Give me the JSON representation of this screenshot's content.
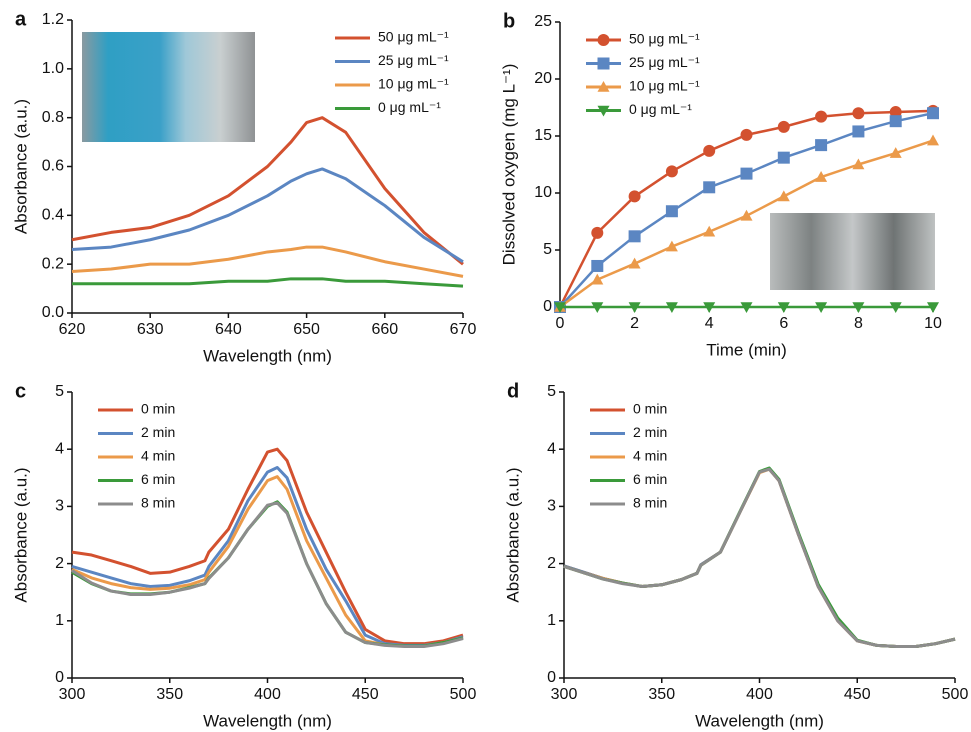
{
  "chart_data": [
    {
      "type": "line",
      "label": "a",
      "xlabel": "Wavelength (nm)",
      "ylabel": "Absorbance (a.u.)",
      "legend": "upper right",
      "x": [
        620,
        625,
        630,
        635,
        640,
        645,
        648,
        650,
        652,
        655,
        660,
        665,
        670
      ],
      "series": [
        {
          "name": "50 μg mL⁻¹",
          "color": "#d3512f",
          "values": [
            0.3,
            0.33,
            0.35,
            0.4,
            0.48,
            0.6,
            0.7,
            0.78,
            0.8,
            0.74,
            0.51,
            0.33,
            0.2
          ]
        },
        {
          "name": "25 μg mL⁻¹",
          "color": "#5b86c2",
          "values": [
            0.26,
            0.27,
            0.3,
            0.34,
            0.4,
            0.48,
            0.54,
            0.57,
            0.59,
            0.55,
            0.44,
            0.31,
            0.21
          ]
        },
        {
          "name": "10 μg mL⁻¹",
          "color": "#eb9a4a",
          "values": [
            0.17,
            0.18,
            0.2,
            0.2,
            0.22,
            0.25,
            0.26,
            0.27,
            0.27,
            0.25,
            0.21,
            0.18,
            0.15
          ]
        },
        {
          "name": "0 μg mL⁻¹",
          "color": "#3a9a3a",
          "values": [
            0.12,
            0.12,
            0.12,
            0.12,
            0.13,
            0.13,
            0.14,
            0.14,
            0.14,
            0.13,
            0.13,
            0.12,
            0.11
          ]
        }
      ],
      "xlim": [
        620,
        670
      ],
      "ylim": [
        0,
        1.2
      ],
      "xticks": [
        620,
        630,
        640,
        650,
        660,
        670
      ],
      "yticks": [
        {
          "value": 0,
          "label": "0.0"
        },
        0.2,
        0.4,
        0.6,
        0.8,
        {
          "value": 1,
          "label": "1.0"
        },
        1.2
      ]
    },
    {
      "type": "line",
      "label": "b",
      "xlabel": "Time (min)",
      "ylabel": "Dissolved oxygen (mg L⁻¹)",
      "legend": "upper left",
      "x": [
        0,
        1,
        2,
        3,
        4,
        5,
        6,
        7,
        8,
        9,
        10
      ],
      "series": [
        {
          "name": "50 μg mL⁻¹",
          "color": "#d3512f",
          "marker": "circle",
          "values": [
            0,
            6.5,
            9.7,
            11.9,
            13.7,
            15.1,
            15.8,
            16.7,
            17.0,
            17.1,
            17.2
          ]
        },
        {
          "name": "25 μg mL⁻¹",
          "color": "#5b86c2",
          "marker": "square",
          "values": [
            0,
            3.6,
            6.2,
            8.4,
            10.5,
            11.7,
            13.1,
            14.2,
            15.4,
            16.3,
            17.0
          ]
        },
        {
          "name": "10 μg mL⁻¹",
          "color": "#eb9a4a",
          "marker": "triangle-up",
          "values": [
            0,
            2.4,
            3.8,
            5.3,
            6.6,
            8.0,
            9.7,
            11.4,
            12.5,
            13.5,
            14.6
          ]
        },
        {
          "name": "0 μg mL⁻¹",
          "color": "#3a9a3a",
          "marker": "triangle-down",
          "values": [
            0,
            0,
            0,
            0,
            0,
            0,
            0,
            0,
            0,
            0,
            0
          ]
        }
      ],
      "xlim": [
        0,
        10
      ],
      "ylim": [
        0,
        25
      ],
      "xticks": [
        0,
        2,
        4,
        6,
        8,
        10
      ],
      "yticks": [
        0,
        5,
        10,
        15,
        20,
        25
      ]
    },
    {
      "type": "line",
      "label": "c",
      "xlabel": "Wavelength (nm)",
      "ylabel": "Absorbance (a.u.)",
      "legend": "upper left",
      "x": [
        300,
        310,
        320,
        330,
        340,
        350,
        360,
        368,
        370,
        380,
        390,
        400,
        405,
        410,
        420,
        430,
        440,
        450,
        460,
        470,
        480,
        490,
        500
      ],
      "series": [
        {
          "name": "0 min",
          "color": "#d3512f",
          "values": [
            2.2,
            2.15,
            2.05,
            1.95,
            1.83,
            1.85,
            1.95,
            2.05,
            2.2,
            2.6,
            3.3,
            3.95,
            4.0,
            3.8,
            2.9,
            2.2,
            1.5,
            0.85,
            0.65,
            0.6,
            0.6,
            0.65,
            0.75
          ]
        },
        {
          "name": "2 min",
          "color": "#5b86c2",
          "values": [
            1.95,
            1.85,
            1.75,
            1.65,
            1.6,
            1.62,
            1.7,
            1.8,
            1.95,
            2.4,
            3.1,
            3.6,
            3.68,
            3.5,
            2.6,
            1.9,
            1.35,
            0.75,
            0.6,
            0.57,
            0.57,
            0.62,
            0.72
          ]
        },
        {
          "name": "4 min",
          "color": "#eb9a4a",
          "values": [
            1.9,
            1.75,
            1.65,
            1.58,
            1.55,
            1.57,
            1.63,
            1.72,
            1.85,
            2.3,
            2.95,
            3.45,
            3.52,
            3.3,
            2.4,
            1.75,
            1.1,
            0.65,
            0.58,
            0.56,
            0.56,
            0.62,
            0.7
          ]
        },
        {
          "name": "6 min",
          "color": "#3a9a3a",
          "values": [
            1.85,
            1.65,
            1.52,
            1.47,
            1.47,
            1.5,
            1.58,
            1.65,
            1.75,
            2.1,
            2.6,
            3.0,
            3.08,
            2.9,
            2.0,
            1.3,
            0.8,
            0.62,
            0.58,
            0.56,
            0.56,
            0.62,
            0.7
          ]
        },
        {
          "name": "8 min",
          "color": "#8c8c8c",
          "values": [
            1.88,
            1.66,
            1.52,
            1.46,
            1.46,
            1.5,
            1.57,
            1.65,
            1.74,
            2.1,
            2.6,
            3.02,
            3.06,
            2.88,
            2.0,
            1.3,
            0.8,
            0.62,
            0.57,
            0.55,
            0.55,
            0.6,
            0.69
          ]
        }
      ],
      "xlim": [
        300,
        500
      ],
      "ylim": [
        0,
        5
      ],
      "xticks": [
        300,
        350,
        400,
        450,
        500
      ],
      "yticks": [
        0,
        1,
        2,
        3,
        4,
        5
      ]
    },
    {
      "type": "line",
      "label": "d",
      "xlabel": "Wavelength (nm)",
      "ylabel": "Absorbance (a.u.)",
      "legend": "upper left",
      "x": [
        300,
        310,
        320,
        330,
        340,
        350,
        360,
        368,
        370,
        380,
        390,
        400,
        405,
        410,
        420,
        430,
        440,
        450,
        460,
        470,
        480,
        490,
        500
      ],
      "series": [
        {
          "name": "0 min",
          "color": "#d3512f",
          "values": [
            1.96,
            1.85,
            1.74,
            1.66,
            1.6,
            1.63,
            1.72,
            1.83,
            1.98,
            2.2,
            2.9,
            3.6,
            3.66,
            3.45,
            2.5,
            1.6,
            1.0,
            0.65,
            0.57,
            0.55,
            0.55,
            0.6,
            0.68
          ]
        },
        {
          "name": "2 min",
          "color": "#5b86c2",
          "values": [
            1.96,
            1.85,
            1.74,
            1.66,
            1.6,
            1.63,
            1.72,
            1.83,
            1.98,
            2.2,
            2.9,
            3.6,
            3.66,
            3.45,
            2.5,
            1.61,
            1.01,
            0.65,
            0.57,
            0.55,
            0.55,
            0.6,
            0.68
          ]
        },
        {
          "name": "4 min",
          "color": "#eb9a4a",
          "values": [
            1.95,
            1.84,
            1.74,
            1.66,
            1.6,
            1.63,
            1.72,
            1.83,
            1.97,
            2.2,
            2.9,
            3.59,
            3.65,
            3.45,
            2.5,
            1.61,
            1.02,
            0.65,
            0.57,
            0.55,
            0.55,
            0.6,
            0.68
          ]
        },
        {
          "name": "6 min",
          "color": "#3a9a3a",
          "values": [
            1.95,
            1.84,
            1.73,
            1.66,
            1.6,
            1.63,
            1.72,
            1.83,
            1.97,
            2.2,
            2.91,
            3.61,
            3.67,
            3.47,
            2.53,
            1.64,
            1.05,
            0.66,
            0.57,
            0.55,
            0.55,
            0.6,
            0.68
          ]
        },
        {
          "name": "8 min",
          "color": "#8c8c8c",
          "values": [
            1.95,
            1.84,
            1.73,
            1.65,
            1.6,
            1.63,
            1.72,
            1.83,
            1.97,
            2.2,
            2.9,
            3.6,
            3.65,
            3.45,
            2.5,
            1.6,
            1.0,
            0.65,
            0.57,
            0.55,
            0.55,
            0.6,
            0.68
          ]
        }
      ],
      "xlim": [
        300,
        500
      ],
      "ylim": [
        0,
        5
      ],
      "xticks": [
        300,
        350,
        400,
        450,
        500
      ],
      "yticks": [
        0,
        1,
        2,
        3,
        4,
        5
      ]
    }
  ]
}
